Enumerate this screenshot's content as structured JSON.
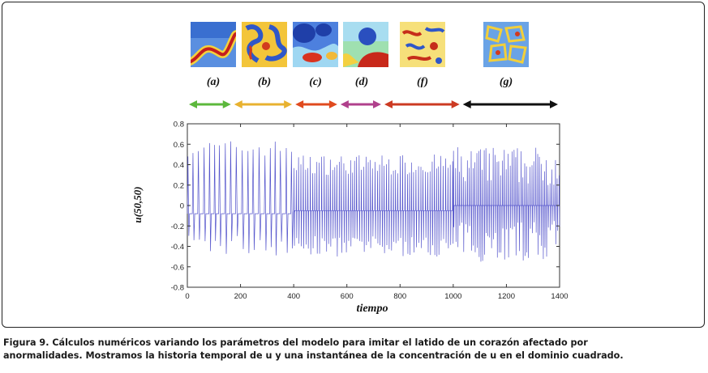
{
  "snapshots": [
    {
      "label": "(a)",
      "theme": "blue-red-stripe"
    },
    {
      "label": "(b)",
      "theme": "yellow-blue-swirl"
    },
    {
      "label": "(c)",
      "theme": "blue-red-blobs"
    },
    {
      "label": "(d)",
      "theme": "red-blue-spot"
    },
    {
      "label": "(f)",
      "theme": "yellow-red-spots"
    },
    {
      "label": "(g)",
      "theme": "blue-yellow-cells"
    }
  ],
  "arrows": [
    {
      "x0": 0,
      "x1": 170,
      "color": "#5cb83c"
    },
    {
      "x0": 170,
      "x1": 400,
      "color": "#e8b230"
    },
    {
      "x0": 400,
      "x1": 570,
      "color": "#e04a1e"
    },
    {
      "x0": 570,
      "x1": 735,
      "color": "#b0408c"
    },
    {
      "x0": 735,
      "x1": 1030,
      "color": "#cc3a22"
    },
    {
      "x0": 1030,
      "x1": 1400,
      "color": "#111111"
    }
  ],
  "chart_data": {
    "type": "line",
    "title": "",
    "xlabel": "tiempo",
    "ylabel": "u(50,50)",
    "xlim": [
      0,
      1400
    ],
    "ylim": [
      -0.8,
      0.8
    ],
    "xticks": [
      0,
      200,
      400,
      600,
      800,
      1000,
      1200,
      1400
    ],
    "yticks": [
      -0.8,
      -0.6,
      -0.4,
      -0.2,
      0,
      0.2,
      0.4,
      0.6,
      0.8
    ],
    "xtick_labels": [
      "0",
      "200",
      "400",
      "600",
      "800",
      "1000",
      "1200",
      "1400"
    ],
    "ytick_labels": [
      "-0.8",
      "-0.6",
      "-0.4",
      "-0.2",
      "0",
      "0.2",
      "0.4",
      "0.6",
      "0.8"
    ],
    "grid": false,
    "series_color": "#5555cc",
    "segments": [
      {
        "t_start": 0,
        "t_end": 400,
        "period": 20,
        "baseline": -0.08,
        "max": [
          0.48,
          0.64
        ],
        "min": [
          -0.5,
          -0.28
        ]
      },
      {
        "t_start": 400,
        "t_end": 1000,
        "period": 8.5,
        "baseline": -0.05,
        "max": [
          0.3,
          0.5
        ],
        "min": [
          -0.5,
          -0.3
        ]
      },
      {
        "t_start": 1000,
        "t_end": 1400,
        "period": 7,
        "baseline": 0.0,
        "max": [
          0.2,
          0.58
        ],
        "min": [
          -0.55,
          -0.15
        ]
      }
    ]
  },
  "caption": {
    "line1": "Figura 9. Cálculos numéricos variando los parámetros del modelo para imitar el latido de un corazón afectado por",
    "line2": "anormalidades. Mostramos la historia temporal de u y una instantánea de la concentración de u en el dominio cuadrado."
  }
}
